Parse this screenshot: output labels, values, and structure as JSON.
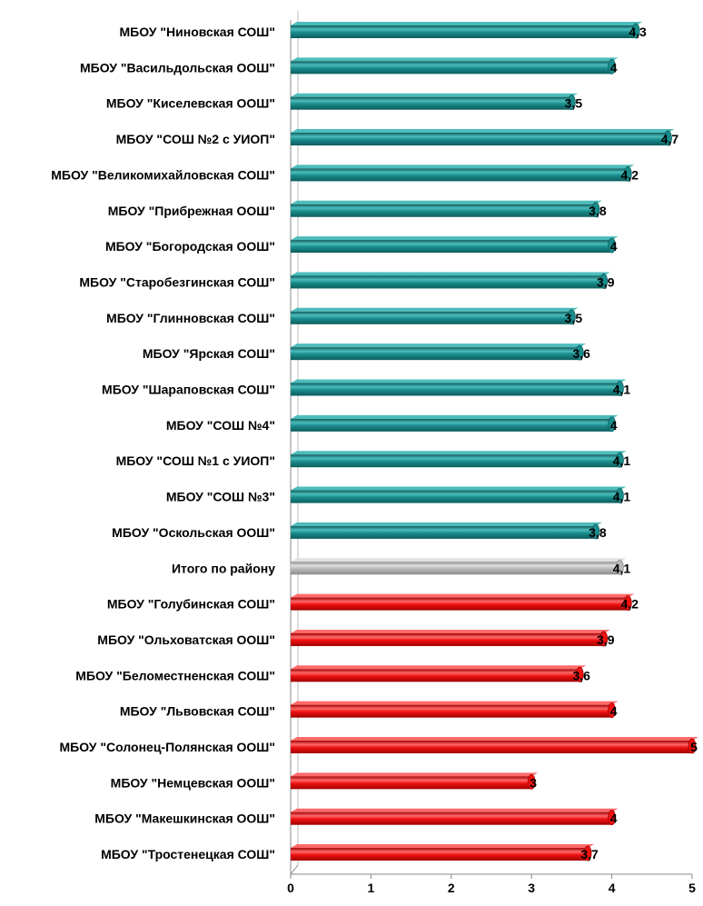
{
  "chart_data": {
    "type": "bar",
    "orientation": "horizontal",
    "style": "3d-cylinder",
    "categories": [
      "МБОУ \"Ниновская СОШ\"",
      "МБОУ \"Васильдольская ООШ\"",
      "МБОУ \"Киселевская ООШ\"",
      "МБОУ \"СОШ №2 с УИОП\"",
      "МБОУ \"Великомихайловская СОШ\"",
      "МБОУ \"Прибрежная ООШ\"",
      "МБОУ \"Богородская ООШ\"",
      "МБОУ \"Старобезгинская СОШ\"",
      "МБОУ \"Глинновская СОШ\"",
      "МБОУ \"Ярская СОШ\"",
      "МБОУ \"Шараповская СОШ\"",
      "МБОУ \"СОШ №4\"",
      "МБОУ \"СОШ №1 с УИОП\"",
      "МБОУ \"СОШ №3\"",
      "МБОУ \"Оскольская ООШ\"",
      "Итого по району",
      "МБОУ \"Голубинская СОШ\"",
      "МБОУ \"Ольховатская ООШ\"",
      "МБОУ \"Беломестненская СОШ\"",
      "МБОУ \"Львовская СОШ\"",
      "МБОУ \"Солонец-Полянская ООШ\"",
      "МБОУ \"Немцевская ООШ\"",
      "МБОУ \"Макешкинская ООШ\"",
      "МБОУ \"Тростенецкая СОШ\""
    ],
    "values": [
      4.3,
      4,
      3.5,
      4.7,
      4.2,
      3.8,
      4,
      3.9,
      3.5,
      3.6,
      4.1,
      4,
      4.1,
      4.1,
      3.8,
      4.1,
      4.2,
      3.9,
      3.6,
      4,
      5,
      3,
      4,
      3.7
    ],
    "value_labels": [
      "4,3",
      "4",
      "3,5",
      "4,7",
      "4,2",
      "3,8",
      "4",
      "3,9",
      "3,5",
      "3,6",
      "4,1",
      "4",
      "4,1",
      "4,1",
      "3,8",
      "4,1",
      "4,2",
      "3,9",
      "3,6",
      "4",
      "5",
      "3",
      "4",
      "3,7"
    ],
    "bar_colors": [
      "teal",
      "teal",
      "teal",
      "teal",
      "teal",
      "teal",
      "teal",
      "teal",
      "teal",
      "teal",
      "teal",
      "teal",
      "teal",
      "teal",
      "teal",
      "gray",
      "red",
      "red",
      "red",
      "red",
      "red",
      "red",
      "red",
      "red"
    ],
    "xlim": [
      0,
      5
    ],
    "x_ticks": [
      0,
      1,
      2,
      3,
      4,
      5
    ],
    "title": "",
    "xlabel": "",
    "ylabel": "",
    "grid": false,
    "legend": "none",
    "colors": {
      "teal": "#1a8c8c",
      "teal_dark": "#0d5c5c",
      "teal_light": "#4dbcbc",
      "gray": "#b8b8b8",
      "gray_dark": "#8c8c8c",
      "gray_light": "#e0e0e0",
      "red": "#ee1111",
      "red_dark": "#a00000",
      "red_light": "#ff6a6a",
      "axis": "#888888"
    }
  }
}
